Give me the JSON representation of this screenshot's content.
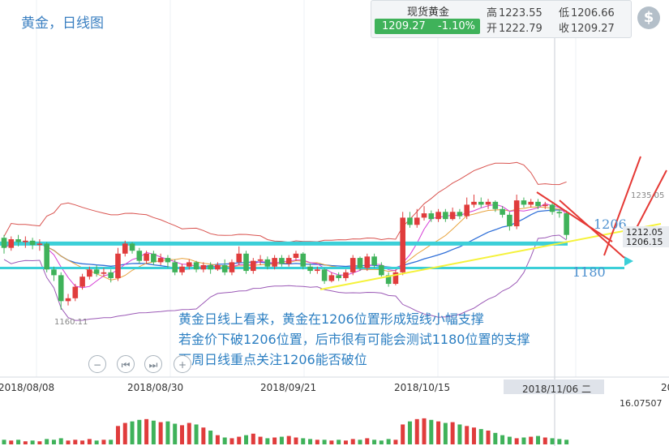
{
  "title": "黄金，日线图",
  "quote": {
    "name": "现货黄金",
    "price": "1209.27",
    "change": "-1.10%",
    "high_label": "高",
    "high": "1223.55",
    "open_label": "开",
    "open": "1222.79",
    "low_label": "低",
    "low": "1206.66",
    "close_label": "收",
    "close": "1209.27",
    "up_color": "#e03c3c",
    "down_color": "#3fb25a"
  },
  "dollar_icon": "$",
  "annotations": [
    "黄金日线上看来，黄金在1206位置形成短线小幅支撑",
    "若金价下破1206位置，后市很有可能会测试1180位置的支撑",
    "下周日线重点关注1206能否破位"
  ],
  "controls": {
    "zoom_out": "−",
    "first": "⏮",
    "last": "⏭",
    "zoom_in": "+"
  },
  "chart_data": {
    "type": "candlestick",
    "x_labels": [
      "2018/08/08",
      "2018/08/30",
      "2018/09/21",
      "2018/10/15",
      "2018/11/06 二",
      "20"
    ],
    "highlighted_x_label": "2018/11/06 二",
    "price_labels": {
      "low_marker": "1160.11",
      "high_marker": "1235.05",
      "level_1206": "1206",
      "level_1180": "1180",
      "tag_1212": "1212.05",
      "tag_1206": "1206.15"
    },
    "volume_axis_label": "16.07507",
    "candles": [
      {
        "o": 1210,
        "c": 1203,
        "h": 1212,
        "l": 1199
      },
      {
        "o": 1203,
        "c": 1209,
        "h": 1211,
        "l": 1201
      },
      {
        "o": 1209,
        "c": 1207,
        "h": 1212,
        "l": 1204
      },
      {
        "o": 1207,
        "c": 1208,
        "h": 1211,
        "l": 1203
      },
      {
        "o": 1208,
        "c": 1205,
        "h": 1210,
        "l": 1202
      },
      {
        "o": 1205,
        "c": 1206,
        "h": 1209,
        "l": 1201
      },
      {
        "o": 1206,
        "c": 1188,
        "h": 1207,
        "l": 1186
      },
      {
        "o": 1188,
        "c": 1184,
        "h": 1190,
        "l": 1180
      },
      {
        "o": 1184,
        "c": 1166,
        "h": 1186,
        "l": 1160
      },
      {
        "o": 1166,
        "c": 1168,
        "h": 1171,
        "l": 1163
      },
      {
        "o": 1168,
        "c": 1176,
        "h": 1178,
        "l": 1166
      },
      {
        "o": 1176,
        "c": 1183,
        "h": 1185,
        "l": 1174
      },
      {
        "o": 1183,
        "c": 1188,
        "h": 1190,
        "l": 1181
      },
      {
        "o": 1188,
        "c": 1185,
        "h": 1191,
        "l": 1183
      },
      {
        "o": 1185,
        "c": 1186,
        "h": 1189,
        "l": 1183
      },
      {
        "o": 1186,
        "c": 1182,
        "h": 1188,
        "l": 1179
      },
      {
        "o": 1182,
        "c": 1199,
        "h": 1203,
        "l": 1180
      },
      {
        "o": 1199,
        "c": 1206,
        "h": 1208,
        "l": 1197
      },
      {
        "o": 1206,
        "c": 1201,
        "h": 1207,
        "l": 1199
      },
      {
        "o": 1201,
        "c": 1194,
        "h": 1203,
        "l": 1192
      },
      {
        "o": 1194,
        "c": 1199,
        "h": 1201,
        "l": 1192
      },
      {
        "o": 1199,
        "c": 1193,
        "h": 1201,
        "l": 1191
      },
      {
        "o": 1193,
        "c": 1196,
        "h": 1199,
        "l": 1191
      },
      {
        "o": 1196,
        "c": 1193,
        "h": 1198,
        "l": 1189
      },
      {
        "o": 1193,
        "c": 1186,
        "h": 1195,
        "l": 1184
      },
      {
        "o": 1186,
        "c": 1190,
        "h": 1192,
        "l": 1184
      },
      {
        "o": 1190,
        "c": 1193,
        "h": 1195,
        "l": 1188
      },
      {
        "o": 1193,
        "c": 1188,
        "h": 1194,
        "l": 1186
      },
      {
        "o": 1188,
        "c": 1191,
        "h": 1193,
        "l": 1186
      },
      {
        "o": 1191,
        "c": 1188,
        "h": 1193,
        "l": 1185
      },
      {
        "o": 1188,
        "c": 1191,
        "h": 1193,
        "l": 1187
      },
      {
        "o": 1191,
        "c": 1186,
        "h": 1195,
        "l": 1184
      },
      {
        "o": 1186,
        "c": 1193,
        "h": 1195,
        "l": 1184
      },
      {
        "o": 1193,
        "c": 1199,
        "h": 1204,
        "l": 1191
      },
      {
        "o": 1199,
        "c": 1187,
        "h": 1201,
        "l": 1185
      },
      {
        "o": 1187,
        "c": 1194,
        "h": 1196,
        "l": 1185
      },
      {
        "o": 1194,
        "c": 1195,
        "h": 1198,
        "l": 1191
      },
      {
        "o": 1195,
        "c": 1190,
        "h": 1197,
        "l": 1188
      },
      {
        "o": 1190,
        "c": 1196,
        "h": 1198,
        "l": 1188
      },
      {
        "o": 1196,
        "c": 1192,
        "h": 1198,
        "l": 1190
      },
      {
        "o": 1192,
        "c": 1196,
        "h": 1198,
        "l": 1190
      },
      {
        "o": 1196,
        "c": 1199,
        "h": 1201,
        "l": 1194
      },
      {
        "o": 1199,
        "c": 1190,
        "h": 1200,
        "l": 1188
      },
      {
        "o": 1190,
        "c": 1187,
        "h": 1192,
        "l": 1185
      },
      {
        "o": 1187,
        "c": 1188,
        "h": 1190,
        "l": 1185
      },
      {
        "o": 1188,
        "c": 1180,
        "h": 1189,
        "l": 1178
      },
      {
        "o": 1180,
        "c": 1184,
        "h": 1186,
        "l": 1179
      },
      {
        "o": 1184,
        "c": 1182,
        "h": 1186,
        "l": 1180
      },
      {
        "o": 1182,
        "c": 1186,
        "h": 1188,
        "l": 1180
      },
      {
        "o": 1186,
        "c": 1196,
        "h": 1198,
        "l": 1184
      },
      {
        "o": 1196,
        "c": 1189,
        "h": 1197,
        "l": 1187
      },
      {
        "o": 1189,
        "c": 1197,
        "h": 1199,
        "l": 1187
      },
      {
        "o": 1197,
        "c": 1191,
        "h": 1199,
        "l": 1189
      },
      {
        "o": 1191,
        "c": 1184,
        "h": 1193,
        "l": 1183
      },
      {
        "o": 1184,
        "c": 1178,
        "h": 1186,
        "l": 1176
      },
      {
        "o": 1178,
        "c": 1186,
        "h": 1188,
        "l": 1177
      },
      {
        "o": 1186,
        "c": 1224,
        "h": 1228,
        "l": 1184
      },
      {
        "o": 1224,
        "c": 1219,
        "h": 1228,
        "l": 1217
      },
      {
        "o": 1219,
        "c": 1224,
        "h": 1230,
        "l": 1217
      },
      {
        "o": 1224,
        "c": 1227,
        "h": 1232,
        "l": 1222
      },
      {
        "o": 1227,
        "c": 1223,
        "h": 1229,
        "l": 1221
      },
      {
        "o": 1223,
        "c": 1228,
        "h": 1230,
        "l": 1221
      },
      {
        "o": 1228,
        "c": 1223,
        "h": 1230,
        "l": 1221
      },
      {
        "o": 1223,
        "c": 1228,
        "h": 1231,
        "l": 1222
      },
      {
        "o": 1228,
        "c": 1225,
        "h": 1230,
        "l": 1223
      },
      {
        "o": 1225,
        "c": 1233,
        "h": 1238,
        "l": 1223
      },
      {
        "o": 1233,
        "c": 1235,
        "h": 1240,
        "l": 1231
      },
      {
        "o": 1235,
        "c": 1233,
        "h": 1238,
        "l": 1231
      },
      {
        "o": 1233,
        "c": 1235,
        "h": 1237,
        "l": 1230
      },
      {
        "o": 1235,
        "c": 1230,
        "h": 1236,
        "l": 1228
      },
      {
        "o": 1230,
        "c": 1226,
        "h": 1232,
        "l": 1224
      },
      {
        "o": 1226,
        "c": 1218,
        "h": 1228,
        "l": 1215
      },
      {
        "o": 1218,
        "c": 1236,
        "h": 1240,
        "l": 1216
      },
      {
        "o": 1236,
        "c": 1233,
        "h": 1238,
        "l": 1231
      },
      {
        "o": 1233,
        "c": 1235,
        "h": 1237,
        "l": 1231
      },
      {
        "o": 1235,
        "c": 1232,
        "h": 1237,
        "l": 1230
      },
      {
        "o": 1232,
        "c": 1233,
        "h": 1235,
        "l": 1230
      },
      {
        "o": 1233,
        "c": 1228,
        "h": 1234,
        "l": 1226
      },
      {
        "o": 1228,
        "c": 1227,
        "h": 1230,
        "l": 1224
      },
      {
        "o": 1227,
        "c": 1212,
        "h": 1229,
        "l": 1209
      }
    ],
    "volume": [
      6,
      5,
      6,
      4,
      5,
      4,
      7,
      6,
      8,
      5,
      6,
      5,
      7,
      5,
      6,
      6,
      24,
      28,
      30,
      32,
      33,
      31,
      29,
      30,
      27,
      25,
      28,
      26,
      22,
      18,
      12,
      9,
      8,
      10,
      12,
      14,
      10,
      8,
      9,
      10,
      11,
      9,
      8,
      7,
      6,
      6,
      5,
      6,
      5,
      7,
      6,
      8,
      6,
      5,
      7,
      6,
      26,
      30,
      33,
      34,
      32,
      30,
      28,
      29,
      26,
      24,
      22,
      20,
      18,
      15,
      12,
      10,
      8,
      9,
      10,
      11,
      9,
      8,
      7,
      6
    ]
  }
}
